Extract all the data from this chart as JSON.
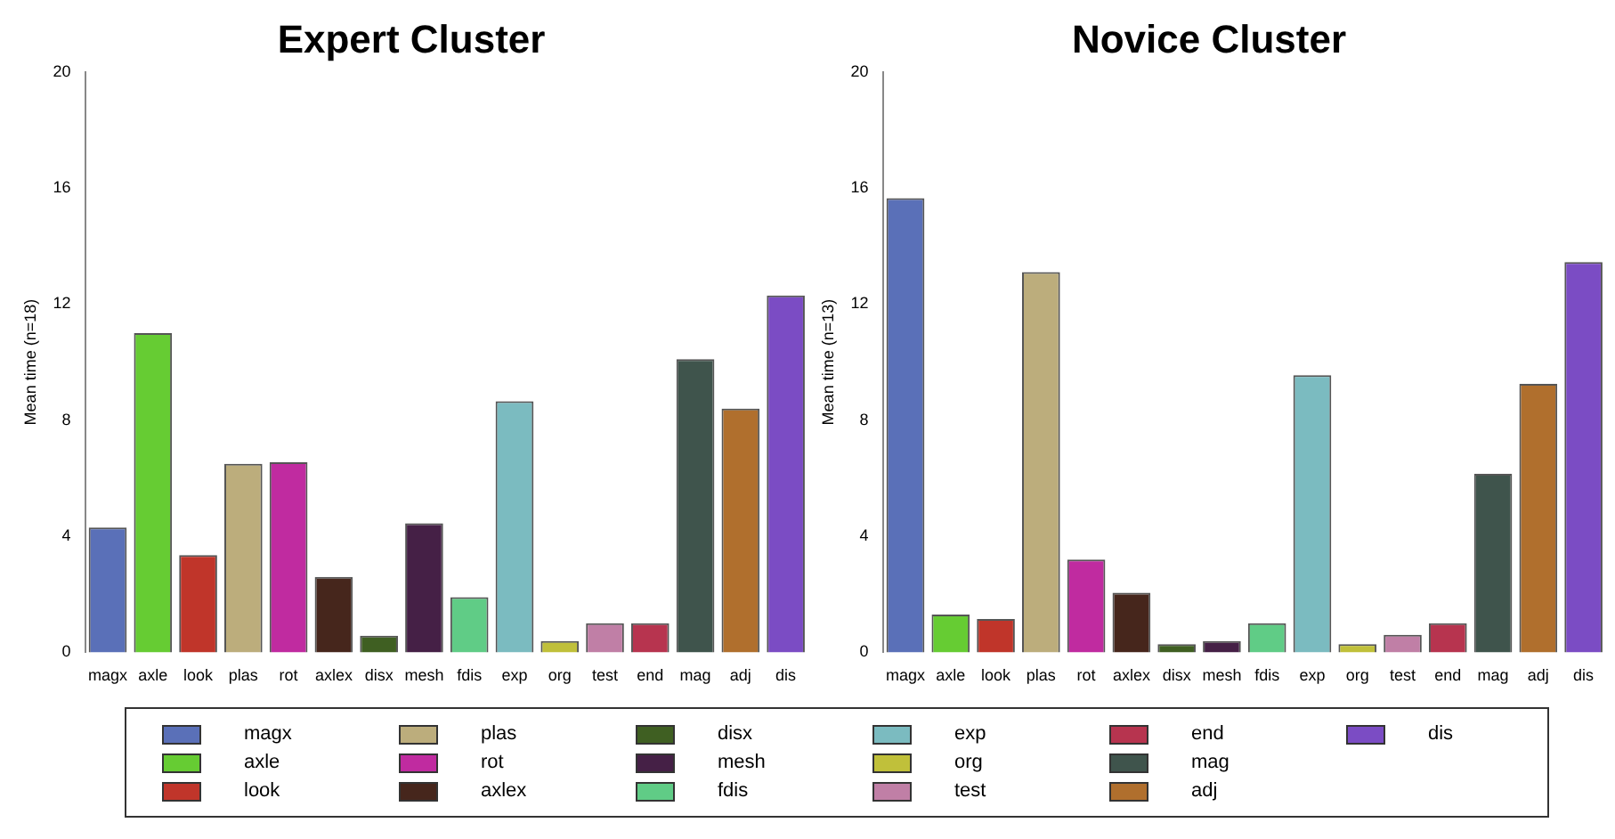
{
  "chart_data": [
    {
      "type": "bar",
      "title": "Expert Cluster",
      "ylabel": "Mean time (n=18)",
      "categories": [
        "magx",
        "axle",
        "look",
        "plas",
        "rot",
        "axlex",
        "disx",
        "mesh",
        "fdis",
        "exp",
        "org",
        "test",
        "end",
        "mag",
        "adj",
        "dis"
      ],
      "values": [
        4.3,
        11.0,
        3.35,
        6.5,
        6.55,
        2.6,
        0.57,
        4.45,
        1.9,
        8.65,
        0.39,
        1.0,
        1.0,
        10.1,
        8.4,
        12.3
      ],
      "colors": [
        "#5a70b8",
        "#66cc33",
        "#c0352a",
        "#bcad7c",
        "#c02ba0",
        "#46261c",
        "#3f5f22",
        "#452046",
        "#60cc86",
        "#7bbbc0",
        "#c0c03a",
        "#c07fa6",
        "#b7344f",
        "#3f544c",
        "#b06f2d",
        "#7b4cc4"
      ],
      "ylim": [
        0,
        20
      ],
      "yticks": [
        0,
        4,
        8,
        12,
        16,
        20
      ],
      "grid": false
    },
    {
      "type": "bar",
      "title": "Novice Cluster",
      "ylabel": "Mean time (n=13)",
      "categories": [
        "magx",
        "axle",
        "look",
        "plas",
        "rot",
        "axlex",
        "disx",
        "mesh",
        "fdis",
        "exp",
        "org",
        "test",
        "end",
        "mag",
        "adj",
        "dis"
      ],
      "values": [
        15.65,
        1.3,
        1.15,
        13.1,
        3.2,
        2.05,
        0.28,
        0.39,
        1.0,
        9.55,
        0.28,
        0.6,
        1.0,
        6.15,
        9.25,
        13.45
      ],
      "colors": [
        "#5a70b8",
        "#66cc33",
        "#c0352a",
        "#bcad7c",
        "#c02ba0",
        "#46261c",
        "#3f5f22",
        "#452046",
        "#60cc86",
        "#7bbbc0",
        "#c0c03a",
        "#c07fa6",
        "#b7344f",
        "#3f544c",
        "#b06f2d",
        "#7b4cc4"
      ],
      "ylim": [
        0,
        20
      ],
      "yticks": [
        0,
        4,
        8,
        12,
        16,
        20
      ],
      "grid": false
    }
  ]
}
